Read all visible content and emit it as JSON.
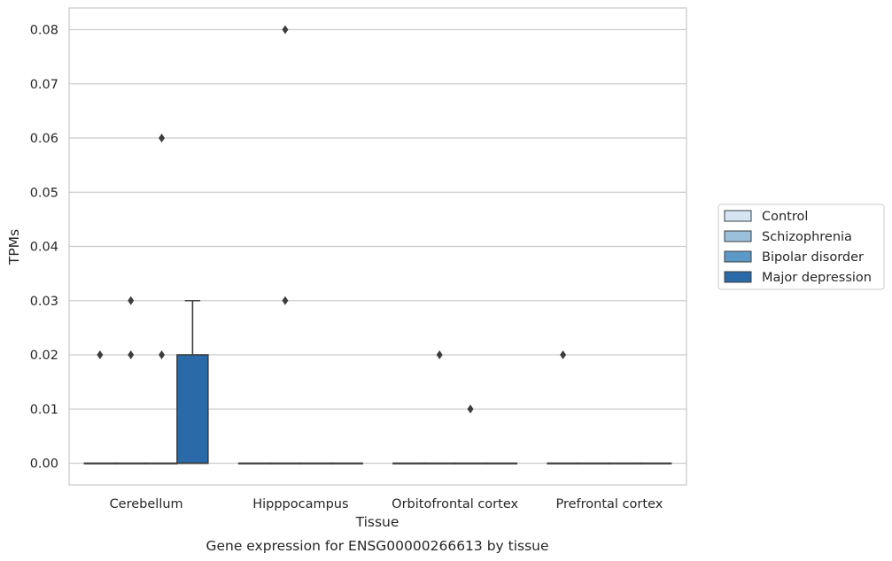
{
  "chart_data": {
    "type": "box",
    "xlabel": "Tissue",
    "ylabel": "TPMs",
    "caption": "Gene expression for ENSG00000266613 by tissue",
    "categories": [
      "Cerebellum",
      "Hipppocampus",
      "Orbitofrontal cortex",
      "Prefrontal cortex"
    ],
    "ylim": [
      -0.004,
      0.084
    ],
    "yticks": [
      "0.00",
      "0.01",
      "0.02",
      "0.03",
      "0.04",
      "0.05",
      "0.06",
      "0.07",
      "0.08"
    ],
    "grid": "horizontal",
    "legend_position": "right",
    "series": [
      {
        "name": "Control",
        "color": "#d6e5f3",
        "boxes": [
          {
            "q1": 0,
            "median": 0,
            "q3": 0,
            "whisker_low": 0,
            "whisker_high": 0,
            "outliers": [
              0.02
            ]
          },
          {
            "q1": 0,
            "median": 0,
            "q3": 0,
            "whisker_low": 0,
            "whisker_high": 0,
            "outliers": []
          },
          {
            "q1": 0,
            "median": 0,
            "q3": 0,
            "whisker_low": 0,
            "whisker_high": 0,
            "outliers": []
          },
          {
            "q1": 0,
            "median": 0,
            "q3": 0,
            "whisker_low": 0,
            "whisker_high": 0,
            "outliers": [
              0.02
            ]
          }
        ]
      },
      {
        "name": "Schizophrenia",
        "color": "#9ac0db",
        "boxes": [
          {
            "q1": 0,
            "median": 0,
            "q3": 0,
            "whisker_low": 0,
            "whisker_high": 0,
            "outliers": [
              0.03,
              0.02
            ]
          },
          {
            "q1": 0,
            "median": 0,
            "q3": 0,
            "whisker_low": 0,
            "whisker_high": 0,
            "outliers": [
              0.08,
              0.03
            ]
          },
          {
            "q1": 0,
            "median": 0,
            "q3": 0,
            "whisker_low": 0,
            "whisker_high": 0,
            "outliers": [
              0.02
            ]
          },
          {
            "q1": 0,
            "median": 0,
            "q3": 0,
            "whisker_low": 0,
            "whisker_high": 0,
            "outliers": []
          }
        ]
      },
      {
        "name": "Bipolar disorder",
        "color": "#5b9ac8",
        "boxes": [
          {
            "q1": 0,
            "median": 0,
            "q3": 0,
            "whisker_low": 0,
            "whisker_high": 0,
            "outliers": [
              0.06,
              0.02
            ]
          },
          {
            "q1": 0,
            "median": 0,
            "q3": 0,
            "whisker_low": 0,
            "whisker_high": 0,
            "outliers": []
          },
          {
            "q1": 0,
            "median": 0,
            "q3": 0,
            "whisker_low": 0,
            "whisker_high": 0,
            "outliers": [
              0.01
            ]
          },
          {
            "q1": 0,
            "median": 0,
            "q3": 0,
            "whisker_low": 0,
            "whisker_high": 0,
            "outliers": []
          }
        ]
      },
      {
        "name": "Major depression",
        "color": "#2b6aa8",
        "boxes": [
          {
            "q1": 0,
            "median": 0,
            "q3": 0.02,
            "whisker_low": 0,
            "whisker_high": 0.03,
            "outliers": []
          },
          {
            "q1": 0,
            "median": 0,
            "q3": 0,
            "whisker_low": 0,
            "whisker_high": 0,
            "outliers": []
          },
          {
            "q1": 0,
            "median": 0,
            "q3": 0,
            "whisker_low": 0,
            "whisker_high": 0,
            "outliers": []
          },
          {
            "q1": 0,
            "median": 0,
            "q3": 0,
            "whisker_low": 0,
            "whisker_high": 0,
            "outliers": []
          }
        ]
      }
    ]
  }
}
